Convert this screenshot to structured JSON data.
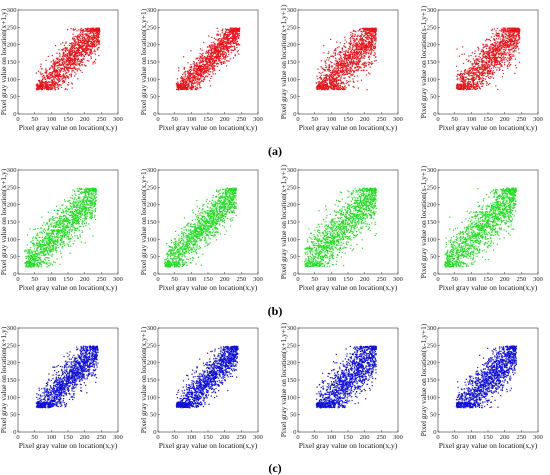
{
  "figure": {
    "row_labels": [
      "(a)",
      "(b)",
      "(c)"
    ]
  },
  "chart_data": [
    {
      "type": "scatter",
      "row": 0,
      "col": 0,
      "color": "#e8141b",
      "xlabel": "Pixel gray value on location(x,y)",
      "ylabel": "Pixel gray value on location(x+1,y)",
      "xlim": [
        0,
        300
      ],
      "ylim": [
        0,
        300
      ],
      "xticks": [
        0,
        50,
        100,
        150,
        200,
        250,
        300
      ],
      "yticks": [
        0,
        50,
        100,
        150,
        200,
        250,
        300
      ],
      "x_range": [
        55,
        245
      ],
      "spread": 38,
      "floor": 70,
      "seed": 11
    },
    {
      "type": "scatter",
      "row": 0,
      "col": 1,
      "color": "#e8141b",
      "xlabel": "Pixel gray value on location(x,y)",
      "ylabel": "Pixel gray value on location(x,y+1)",
      "xlim": [
        0,
        300
      ],
      "ylim": [
        0,
        300
      ],
      "xticks": [
        0,
        50,
        100,
        150,
        200,
        250,
        300
      ],
      "yticks": [
        0,
        50,
        100,
        150,
        200,
        250,
        300
      ],
      "x_range": [
        55,
        245
      ],
      "spread": 32,
      "floor": 70,
      "seed": 23
    },
    {
      "type": "scatter",
      "row": 0,
      "col": 2,
      "color": "#e8141b",
      "xlabel": "Pixel gray value on location(x,y)",
      "ylabel": "Pixel gray value on location(x+1,y+1)",
      "xlim": [
        0,
        300
      ],
      "ylim": [
        0,
        300
      ],
      "xticks": [
        0,
        50,
        100,
        150,
        200,
        250,
        300
      ],
      "yticks": [
        0,
        50,
        100,
        150,
        200,
        250,
        300
      ],
      "x_range": [
        55,
        235
      ],
      "spread": 45,
      "floor": 70,
      "seed": 37
    },
    {
      "type": "scatter",
      "row": 0,
      "col": 3,
      "color": "#e8141b",
      "xlabel": "Pixel gray value on location(x,y)",
      "ylabel": "Pixel gray value on location(x-1,y+1)",
      "xlim": [
        0,
        300
      ],
      "ylim": [
        0,
        300
      ],
      "xticks": [
        0,
        50,
        100,
        150,
        200,
        250,
        300
      ],
      "yticks": [
        0,
        50,
        100,
        150,
        200,
        250,
        300
      ],
      "x_range": [
        55,
        245
      ],
      "spread": 42,
      "floor": 70,
      "seed": 41
    },
    {
      "type": "scatter",
      "row": 1,
      "col": 0,
      "color": "#22dd22",
      "xlabel": "Pixel gray value on location(x,y)",
      "ylabel": "Pixel gray value on location(x+1,y)",
      "xlim": [
        0,
        300
      ],
      "ylim": [
        0,
        300
      ],
      "xticks": [
        0,
        50,
        100,
        150,
        200,
        250,
        300
      ],
      "yticks": [
        0,
        50,
        100,
        150,
        200,
        250,
        300
      ],
      "x_range": [
        20,
        235
      ],
      "spread": 42,
      "floor": 20,
      "seed": 53
    },
    {
      "type": "scatter",
      "row": 1,
      "col": 1,
      "color": "#22dd22",
      "xlabel": "Pixel gray value on location(x,y)",
      "ylabel": "Pixel gray value on location(x,y+1)",
      "xlim": [
        0,
        300
      ],
      "ylim": [
        0,
        300
      ],
      "xticks": [
        0,
        50,
        100,
        150,
        200,
        250,
        300
      ],
      "yticks": [
        0,
        50,
        100,
        150,
        200,
        250,
        300
      ],
      "x_range": [
        20,
        235
      ],
      "spread": 36,
      "floor": 20,
      "seed": 67
    },
    {
      "type": "scatter",
      "row": 1,
      "col": 2,
      "color": "#22dd22",
      "xlabel": "Pixel gray value on location(x,y)",
      "ylabel": "Pixel gray value on location(x+1,y+1)",
      "xlim": [
        0,
        300
      ],
      "ylim": [
        0,
        300
      ],
      "xticks": [
        0,
        50,
        100,
        150,
        200,
        250,
        300
      ],
      "yticks": [
        0,
        50,
        100,
        150,
        200,
        250,
        300
      ],
      "x_range": [
        20,
        235
      ],
      "spread": 48,
      "floor": 20,
      "seed": 71
    },
    {
      "type": "scatter",
      "row": 1,
      "col": 3,
      "color": "#22dd22",
      "xlabel": "Pixel gray value on location(x,y)",
      "ylabel": "Pixel gray value on location(x-1,y+1)",
      "xlim": [
        0,
        300
      ],
      "ylim": [
        0,
        300
      ],
      "xticks": [
        0,
        50,
        100,
        150,
        200,
        250,
        300
      ],
      "yticks": [
        0,
        50,
        100,
        150,
        200,
        250,
        300
      ],
      "x_range": [
        20,
        235
      ],
      "spread": 46,
      "floor": 20,
      "seed": 83
    },
    {
      "type": "scatter",
      "row": 2,
      "col": 0,
      "color": "#1010d8",
      "xlabel": "Pixel gray value on location(x,y)",
      "ylabel": "Pixel gray value on location(x+1,y)",
      "xlim": [
        0,
        300
      ],
      "ylim": [
        0,
        300
      ],
      "xticks": [
        0,
        50,
        100,
        150,
        200,
        250,
        300
      ],
      "yticks": [
        0,
        50,
        100,
        150,
        200,
        250,
        300
      ],
      "x_range": [
        55,
        240
      ],
      "spread": 38,
      "floor": 70,
      "seed": 97
    },
    {
      "type": "scatter",
      "row": 2,
      "col": 1,
      "color": "#1010d8",
      "xlabel": "Pixel gray value on location(x,y)",
      "ylabel": "Pixel gray value on location(x,y+1)",
      "xlim": [
        0,
        300
      ],
      "ylim": [
        0,
        300
      ],
      "xticks": [
        0,
        50,
        100,
        150,
        200,
        250,
        300
      ],
      "yticks": [
        0,
        50,
        100,
        150,
        200,
        250,
        300
      ],
      "x_range": [
        55,
        240
      ],
      "spread": 34,
      "floor": 70,
      "seed": 101
    },
    {
      "type": "scatter",
      "row": 2,
      "col": 2,
      "color": "#1010d8",
      "xlabel": "Pixel gray value on location(x,y)",
      "ylabel": "Pixel gray value on location(x+1,y+1)",
      "xlim": [
        0,
        300
      ],
      "ylim": [
        0,
        300
      ],
      "xticks": [
        0,
        50,
        100,
        150,
        200,
        250,
        300
      ],
      "yticks": [
        0,
        50,
        100,
        150,
        200,
        250,
        300
      ],
      "x_range": [
        55,
        235
      ],
      "spread": 46,
      "floor": 70,
      "seed": 113
    },
    {
      "type": "scatter",
      "row": 2,
      "col": 3,
      "color": "#1010d8",
      "xlabel": "Pixel gray value on location(x,y)",
      "ylabel": "Pixel gray value on location(x-1,y+1)",
      "xlim": [
        0,
        300
      ],
      "ylim": [
        0,
        300
      ],
      "xticks": [
        0,
        50,
        100,
        150,
        200,
        250,
        300
      ],
      "yticks": [
        0,
        50,
        100,
        150,
        200,
        250,
        300
      ],
      "x_range": [
        55,
        235
      ],
      "spread": 42,
      "floor": 70,
      "seed": 127
    }
  ]
}
